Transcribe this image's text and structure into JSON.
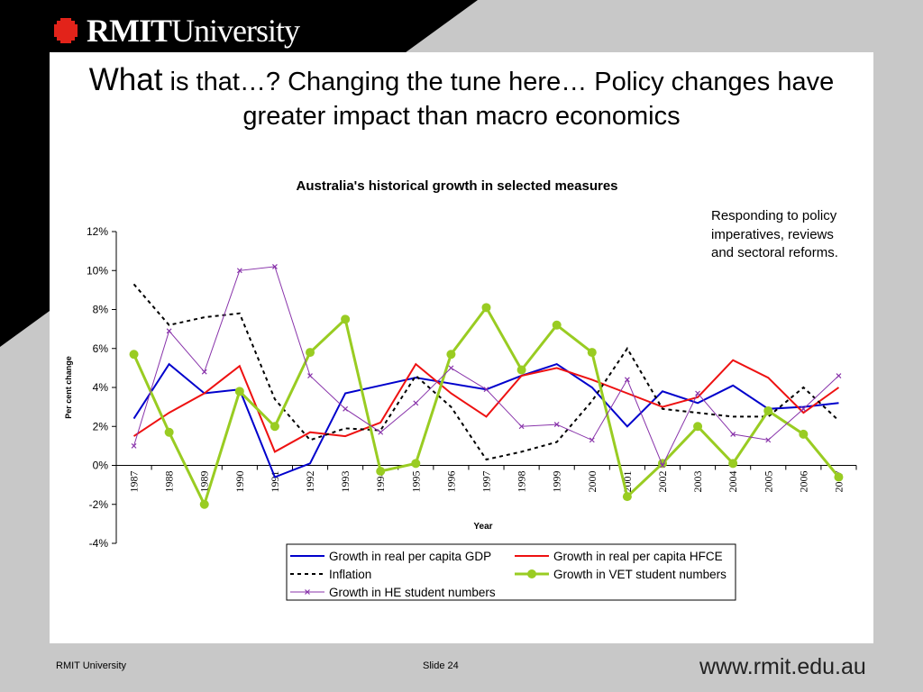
{
  "slide": {
    "title_big": "What",
    "title_rest": " is that…? Changing the tune here… Policy changes have greater impact than macro economics",
    "annotation": "Responding to policy imperatives, reviews and sectoral reforms.",
    "footer_left": "RMIT University",
    "footer_mid": "Slide 24",
    "footer_url": "www.rmit.edu.au",
    "logo_bold": "RMIT",
    "logo_light": "University",
    "colors": {
      "black_band": "#000000",
      "grey_bg": "#c8c8c8",
      "logo_red": "#e2231a"
    }
  },
  "chart_data": {
    "type": "line",
    "title": "Australia's historical growth in selected measures",
    "xlabel": "Year",
    "ylabel": "Per cent change",
    "ylim": [
      -4,
      12
    ],
    "yticks": [
      "12%",
      "10%",
      "8%",
      "6%",
      "4%",
      "2%",
      "0%",
      "-2%",
      "-4%"
    ],
    "x": [
      "1987",
      "1988",
      "1989",
      "1990",
      "1991",
      "1992",
      "1993",
      "1994",
      "1995",
      "1996",
      "1997",
      "1998",
      "1999",
      "2000",
      "2001",
      "2002",
      "2003",
      "2004",
      "2005",
      "2006",
      "2007"
    ],
    "legend_position": "bottom",
    "series": [
      {
        "name": "Growth in real per capita GDP",
        "color": "#0000cc",
        "style": "solid",
        "marker": "none",
        "values": [
          2.4,
          5.2,
          3.7,
          3.9,
          -0.6,
          0.1,
          3.7,
          4.1,
          4.5,
          4.2,
          3.9,
          4.6,
          5.2,
          4.0,
          2.0,
          3.8,
          3.2,
          4.1,
          2.9,
          3.0,
          3.2
        ]
      },
      {
        "name": "Growth in real per capita HFCE",
        "color": "#ee1111",
        "style": "solid",
        "marker": "none",
        "values": [
          1.5,
          2.7,
          3.7,
          5.1,
          0.7,
          1.7,
          1.5,
          2.2,
          5.2,
          3.7,
          2.5,
          4.6,
          5.0,
          4.4,
          3.7,
          3.0,
          3.5,
          5.4,
          4.5,
          2.7,
          4.0
        ]
      },
      {
        "name": "Inflation",
        "color": "#000000",
        "style": "dashed",
        "marker": "none",
        "values": [
          9.3,
          7.2,
          7.6,
          7.8,
          3.4,
          1.3,
          1.9,
          1.8,
          4.6,
          3.0,
          0.3,
          0.7,
          1.2,
          3.3,
          6.0,
          2.9,
          2.7,
          2.5,
          2.5,
          4.0,
          2.3
        ]
      },
      {
        "name": "Growth in VET student numbers",
        "color": "#99cc22",
        "style": "solid",
        "marker": "circle",
        "values": [
          5.7,
          1.7,
          -2.0,
          3.8,
          2.0,
          5.8,
          7.5,
          -0.3,
          0.1,
          5.7,
          8.1,
          4.9,
          7.2,
          5.8,
          -1.6,
          0.1,
          2.0,
          0.1,
          2.8,
          1.6,
          -0.6
        ]
      },
      {
        "name": "Growth in HE student numbers",
        "color": "#8833aa",
        "style": "solid",
        "marker": "x",
        "values": [
          1.0,
          6.9,
          4.8,
          10.0,
          10.2,
          4.6,
          2.9,
          1.7,
          3.2,
          5.0,
          3.9,
          2.0,
          2.1,
          1.3,
          4.4,
          0.0,
          3.7,
          1.6,
          1.3,
          2.9,
          4.6
        ]
      }
    ]
  }
}
